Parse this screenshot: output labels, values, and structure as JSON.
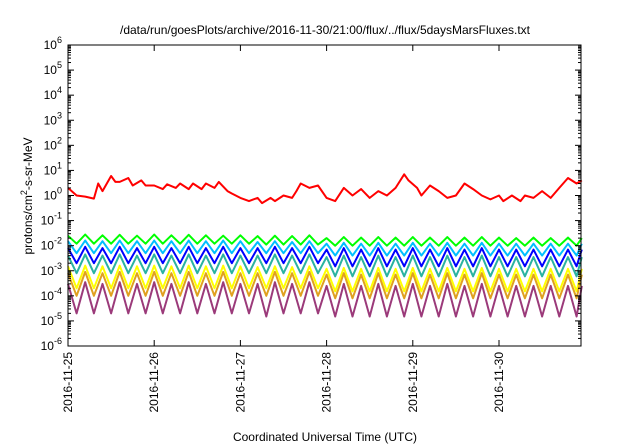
{
  "chart_data": {
    "type": "line",
    "title": "/data/run/goesPlots/archive/2016-11-30/21:00/flux/../flux/5daysMarsFluxes.txt",
    "xlabel": "Coordinated Universal Time (UTC)",
    "ylabel_base": "protons/cm",
    "ylabel_sup": "2",
    "ylabel_rest": "-s-sr-MeV",
    "yscale": "log",
    "xlim": [
      "2016-11-25 00:00",
      "2016-11-30 23:00"
    ],
    "ylim": [
      1e-06,
      1000000.0
    ],
    "xticks": [
      {
        "label": "2016-11-25",
        "day": 0
      },
      {
        "label": "2016-11-26",
        "day": 1
      },
      {
        "label": "2016-11-27",
        "day": 2
      },
      {
        "label": "2016-11-28",
        "day": 3
      },
      {
        "label": "2016-11-29",
        "day": 4
      },
      {
        "label": "2016-11-30",
        "day": 5
      }
    ],
    "yticks": [
      {
        "base": "10",
        "exp": "-6",
        "value": -6
      },
      {
        "base": "10",
        "exp": "-5",
        "value": -5
      },
      {
        "base": "10",
        "exp": "-4",
        "value": -4
      },
      {
        "base": "10",
        "exp": "-3",
        "value": -3
      },
      {
        "base": "10",
        "exp": "-2",
        "value": -2
      },
      {
        "base": "10",
        "exp": "-1",
        "value": -1
      },
      {
        "base": "10",
        "exp": "0",
        "value": 0
      },
      {
        "base": "10",
        "exp": "1",
        "value": 1
      },
      {
        "base": "10",
        "exp": "2",
        "value": 2
      },
      {
        "base": "10",
        "exp": "3",
        "value": 3
      },
      {
        "base": "10",
        "exp": "4",
        "value": 4
      },
      {
        "base": "10",
        "exp": "5",
        "value": 5
      },
      {
        "base": "10",
        "exp": "6",
        "value": 6
      }
    ],
    "grid": false,
    "legend": "none",
    "series": [
      {
        "color": "#ff0000",
        "x": [
          0.0,
          0.1,
          0.2,
          0.3,
          0.35,
          0.4,
          0.5,
          0.55,
          0.6,
          0.7,
          0.75,
          0.85,
          0.9,
          1.0,
          1.1,
          1.15,
          1.25,
          1.3,
          1.4,
          1.45,
          1.55,
          1.6,
          1.7,
          1.75,
          1.85,
          1.9,
          2.0,
          2.1,
          2.2,
          2.25,
          2.35,
          2.4,
          2.5,
          2.6,
          2.65,
          2.7,
          2.8,
          2.9,
          3.0,
          3.1,
          3.2,
          3.3,
          3.4,
          3.5,
          3.6,
          3.7,
          3.8,
          3.9,
          3.95,
          4.05,
          4.1,
          4.2,
          4.3,
          4.4,
          4.5,
          4.6,
          4.7,
          4.8,
          4.9,
          5.0,
          5.05,
          5.15,
          5.25,
          5.3,
          5.4,
          5.5,
          5.6,
          5.7,
          5.8,
          5.9,
          5.96
        ],
        "y": [
          2.0,
          1.0,
          0.9,
          0.75,
          3.0,
          1.5,
          6.0,
          3.5,
          3.5,
          5.0,
          2.5,
          4.0,
          2.5,
          2.5,
          1.8,
          2.8,
          2.0,
          3.0,
          1.8,
          3.0,
          1.8,
          3.0,
          2.0,
          3.5,
          1.5,
          1.2,
          0.8,
          0.6,
          0.8,
          0.5,
          0.8,
          0.6,
          1.0,
          0.8,
          1.5,
          3.0,
          2.0,
          2.5,
          0.8,
          0.6,
          2.0,
          1.0,
          1.8,
          0.8,
          1.5,
          1.0,
          2.0,
          7.0,
          4.0,
          2.0,
          1.0,
          2.5,
          1.5,
          0.8,
          1.0,
          3.0,
          1.8,
          1.0,
          0.7,
          1.0,
          0.6,
          1.0,
          0.6,
          1.0,
          0.8,
          1.5,
          0.8,
          2.0,
          5.0,
          3.0,
          4.0
        ]
      },
      {
        "color": "#00ff00",
        "x": [
          0.0,
          0.1,
          0.2,
          0.3,
          0.4,
          0.5,
          0.6,
          0.7,
          0.8,
          0.9,
          1.0,
          1.1,
          1.2,
          1.3,
          1.4,
          1.5,
          1.6,
          1.7,
          1.8,
          1.9,
          2.0,
          2.1,
          2.2,
          2.3,
          2.4,
          2.5,
          2.6,
          2.7,
          2.8,
          2.9,
          3.0,
          3.1,
          3.2,
          3.3,
          3.4,
          3.5,
          3.6,
          3.7,
          3.8,
          3.9,
          4.0,
          4.1,
          4.2,
          4.3,
          4.4,
          4.5,
          4.6,
          4.7,
          4.8,
          4.9,
          5.0,
          5.1,
          5.2,
          5.3,
          5.4,
          5.5,
          5.6,
          5.7,
          5.8,
          5.9,
          5.96
        ],
        "y": [
          0.025,
          0.012,
          0.028,
          0.012,
          0.026,
          0.012,
          0.027,
          0.012,
          0.025,
          0.012,
          0.028,
          0.012,
          0.026,
          0.012,
          0.027,
          0.012,
          0.026,
          0.012,
          0.025,
          0.012,
          0.026,
          0.012,
          0.024,
          0.011,
          0.025,
          0.011,
          0.024,
          0.011,
          0.026,
          0.011,
          0.02,
          0.01,
          0.022,
          0.01,
          0.021,
          0.01,
          0.022,
          0.01,
          0.021,
          0.01,
          0.022,
          0.01,
          0.021,
          0.01,
          0.022,
          0.01,
          0.021,
          0.01,
          0.022,
          0.01,
          0.021,
          0.01,
          0.02,
          0.01,
          0.021,
          0.01,
          0.02,
          0.01,
          0.021,
          0.01,
          0.02
        ]
      },
      {
        "color": "#00bfff",
        "x": [
          0.0,
          0.1,
          0.2,
          0.3,
          0.4,
          0.5,
          0.6,
          0.7,
          0.8,
          0.9,
          1.0,
          1.1,
          1.2,
          1.3,
          1.4,
          1.5,
          1.6,
          1.7,
          1.8,
          1.9,
          2.0,
          2.1,
          2.2,
          2.3,
          2.4,
          2.5,
          2.6,
          2.7,
          2.8,
          2.9,
          3.0,
          3.1,
          3.2,
          3.3,
          3.4,
          3.5,
          3.6,
          3.7,
          3.8,
          3.9,
          4.0,
          4.1,
          4.2,
          4.3,
          4.4,
          4.5,
          4.6,
          4.7,
          4.8,
          4.9,
          5.0,
          5.1,
          5.2,
          5.3,
          5.4,
          5.5,
          5.6,
          5.7,
          5.8,
          5.9,
          5.96
        ],
        "y": [
          0.015,
          0.005,
          0.016,
          0.005,
          0.015,
          0.005,
          0.016,
          0.005,
          0.015,
          0.005,
          0.016,
          0.005,
          0.015,
          0.005,
          0.016,
          0.005,
          0.015,
          0.005,
          0.016,
          0.005,
          0.015,
          0.005,
          0.014,
          0.005,
          0.015,
          0.005,
          0.014,
          0.005,
          0.015,
          0.005,
          0.012,
          0.004,
          0.013,
          0.004,
          0.012,
          0.004,
          0.013,
          0.004,
          0.012,
          0.004,
          0.013,
          0.004,
          0.012,
          0.004,
          0.013,
          0.004,
          0.012,
          0.004,
          0.013,
          0.004,
          0.012,
          0.004,
          0.012,
          0.004,
          0.012,
          0.004,
          0.012,
          0.004,
          0.012,
          0.004,
          0.012
        ]
      },
      {
        "color": "#0000ff",
        "x": [
          0.0,
          0.1,
          0.2,
          0.3,
          0.4,
          0.5,
          0.6,
          0.7,
          0.8,
          0.9,
          1.0,
          1.1,
          1.2,
          1.3,
          1.4,
          1.5,
          1.6,
          1.7,
          1.8,
          1.9,
          2.0,
          2.1,
          2.2,
          2.3,
          2.4,
          2.5,
          2.6,
          2.7,
          2.8,
          2.9,
          3.0,
          3.1,
          3.2,
          3.3,
          3.4,
          3.5,
          3.6,
          3.7,
          3.8,
          3.9,
          4.0,
          4.1,
          4.2,
          4.3,
          4.4,
          4.5,
          4.6,
          4.7,
          4.8,
          4.9,
          5.0,
          5.1,
          5.2,
          5.3,
          5.4,
          5.5,
          5.6,
          5.7,
          5.8,
          5.9,
          5.96
        ],
        "y": [
          0.008,
          0.002,
          0.009,
          0.002,
          0.008,
          0.002,
          0.009,
          0.002,
          0.008,
          0.002,
          0.009,
          0.002,
          0.008,
          0.002,
          0.009,
          0.002,
          0.008,
          0.002,
          0.009,
          0.002,
          0.008,
          0.002,
          0.008,
          0.002,
          0.009,
          0.002,
          0.008,
          0.002,
          0.009,
          0.002,
          0.007,
          0.0015,
          0.008,
          0.0015,
          0.007,
          0.0015,
          0.008,
          0.0015,
          0.007,
          0.0015,
          0.008,
          0.0015,
          0.007,
          0.0015,
          0.008,
          0.0015,
          0.007,
          0.0015,
          0.008,
          0.0015,
          0.007,
          0.0015,
          0.007,
          0.0015,
          0.007,
          0.0015,
          0.007,
          0.0015,
          0.007,
          0.0015,
          0.007
        ]
      },
      {
        "color": "#2ab3a0",
        "x": [
          0.0,
          0.1,
          0.2,
          0.3,
          0.4,
          0.5,
          0.6,
          0.7,
          0.8,
          0.9,
          1.0,
          1.1,
          1.2,
          1.3,
          1.4,
          1.5,
          1.6,
          1.7,
          1.8,
          1.9,
          2.0,
          2.1,
          2.2,
          2.3,
          2.4,
          2.5,
          2.6,
          2.7,
          2.8,
          2.9,
          3.0,
          3.1,
          3.2,
          3.3,
          3.4,
          3.5,
          3.6,
          3.7,
          3.8,
          3.9,
          4.0,
          4.1,
          4.2,
          4.3,
          4.4,
          4.5,
          4.6,
          4.7,
          4.8,
          4.9,
          5.0,
          5.1,
          5.2,
          5.3,
          5.4,
          5.5,
          5.6,
          5.7,
          5.8,
          5.9,
          5.96
        ],
        "y": [
          0.004,
          0.0008,
          0.0045,
          0.0008,
          0.004,
          0.0008,
          0.0045,
          0.0008,
          0.004,
          0.0008,
          0.0045,
          0.0008,
          0.004,
          0.0008,
          0.0045,
          0.0008,
          0.004,
          0.0008,
          0.0045,
          0.0008,
          0.004,
          0.0008,
          0.004,
          0.0008,
          0.0045,
          0.0008,
          0.004,
          0.0008,
          0.0045,
          0.0008,
          0.0035,
          0.0006,
          0.004,
          0.0006,
          0.0035,
          0.0006,
          0.004,
          0.0006,
          0.0035,
          0.0006,
          0.004,
          0.0006,
          0.0035,
          0.0006,
          0.004,
          0.0006,
          0.0035,
          0.0006,
          0.004,
          0.0006,
          0.0035,
          0.0006,
          0.0035,
          0.0006,
          0.0035,
          0.0006,
          0.0035,
          0.0006,
          0.0035,
          0.0006,
          0.0035
        ]
      },
      {
        "color": "#ffff00",
        "x": [
          0.0,
          0.1,
          0.2,
          0.3,
          0.4,
          0.5,
          0.6,
          0.7,
          0.8,
          0.9,
          1.0,
          1.1,
          1.2,
          1.3,
          1.4,
          1.5,
          1.6,
          1.7,
          1.8,
          1.9,
          2.0,
          2.1,
          2.2,
          2.3,
          2.4,
          2.5,
          2.6,
          2.7,
          2.8,
          2.9,
          3.0,
          3.1,
          3.2,
          3.3,
          3.4,
          3.5,
          3.6,
          3.7,
          3.8,
          3.9,
          4.0,
          4.1,
          4.2,
          4.3,
          4.4,
          4.5,
          4.6,
          4.7,
          4.8,
          4.9,
          5.0,
          5.1,
          5.2,
          5.3,
          5.4,
          5.5,
          5.6,
          5.7,
          5.8,
          5.9,
          5.96
        ],
        "y": [
          0.0015,
          0.0002,
          0.0016,
          0.0002,
          0.0015,
          0.0002,
          0.0016,
          0.0002,
          0.0015,
          0.0002,
          0.0016,
          0.0002,
          0.0015,
          0.0002,
          0.0016,
          0.0002,
          0.0015,
          0.0002,
          0.0016,
          0.0002,
          0.0015,
          0.0002,
          0.0014,
          0.0002,
          0.0015,
          0.0002,
          0.0014,
          0.0002,
          0.0015,
          0.0002,
          0.0012,
          0.00015,
          0.0013,
          0.00015,
          0.0012,
          0.00015,
          0.0013,
          0.00015,
          0.0012,
          0.00015,
          0.0013,
          0.00015,
          0.0012,
          0.00015,
          0.0013,
          0.00015,
          0.0012,
          0.00015,
          0.0013,
          0.00015,
          0.0012,
          0.00015,
          0.0012,
          0.00015,
          0.0012,
          0.00015,
          0.0012,
          0.00015,
          0.0012,
          0.00015,
          0.0012
        ]
      },
      {
        "color": "#e0a020",
        "x": [
          0.0,
          0.1,
          0.2,
          0.3,
          0.4,
          0.5,
          0.6,
          0.7,
          0.8,
          0.9,
          1.0,
          1.1,
          1.2,
          1.3,
          1.4,
          1.5,
          1.6,
          1.7,
          1.8,
          1.9,
          2.0,
          2.1,
          2.2,
          2.3,
          2.4,
          2.5,
          2.6,
          2.7,
          2.8,
          2.9,
          3.0,
          3.1,
          3.2,
          3.3,
          3.4,
          3.5,
          3.6,
          3.7,
          3.8,
          3.9,
          4.0,
          4.1,
          4.2,
          4.3,
          4.4,
          4.5,
          4.6,
          4.7,
          4.8,
          4.9,
          5.0,
          5.1,
          5.2,
          5.3,
          5.4,
          5.5,
          5.6,
          5.7,
          5.8,
          5.9,
          5.96
        ],
        "y": [
          0.0008,
          0.0001,
          0.0009,
          0.0001,
          0.0008,
          0.0001,
          0.0009,
          0.0001,
          0.0008,
          0.0001,
          0.0009,
          0.0001,
          0.0008,
          0.0001,
          0.0009,
          0.0001,
          0.0008,
          0.0001,
          0.0009,
          0.0001,
          0.0008,
          0.0001,
          0.0008,
          0.0001,
          0.0009,
          0.0001,
          0.0008,
          0.0001,
          0.0009,
          0.0001,
          0.0007,
          8e-05,
          0.0008,
          8e-05,
          0.0007,
          8e-05,
          0.0008,
          8e-05,
          0.0007,
          8e-05,
          0.0008,
          8e-05,
          0.0007,
          8e-05,
          0.0008,
          8e-05,
          0.0007,
          8e-05,
          0.0008,
          8e-05,
          0.0007,
          8e-05,
          0.0007,
          8e-05,
          0.0007,
          8e-05,
          0.0007,
          8e-05,
          0.0007,
          8e-05,
          0.0007
        ]
      },
      {
        "color": "#9b3a7a",
        "x": [
          0.0,
          0.1,
          0.2,
          0.3,
          0.4,
          0.5,
          0.6,
          0.7,
          0.8,
          0.9,
          1.0,
          1.1,
          1.2,
          1.3,
          1.4,
          1.5,
          1.6,
          1.7,
          1.8,
          1.9,
          2.0,
          2.1,
          2.2,
          2.3,
          2.4,
          2.5,
          2.6,
          2.7,
          2.8,
          2.9,
          3.0,
          3.1,
          3.2,
          3.3,
          3.4,
          3.5,
          3.6,
          3.7,
          3.8,
          3.9,
          4.0,
          4.1,
          4.2,
          4.3,
          4.4,
          4.5,
          4.6,
          4.7,
          4.8,
          4.9,
          5.0,
          5.1,
          5.2,
          5.3,
          5.4,
          5.5,
          5.6,
          5.7,
          5.8,
          5.9,
          5.96
        ],
        "y": [
          0.0003,
          2e-05,
          0.00035,
          2e-05,
          0.0003,
          2e-05,
          0.00035,
          2e-05,
          0.0003,
          2e-05,
          0.00035,
          2e-05,
          0.0003,
          2e-05,
          0.00035,
          2e-05,
          0.0003,
          2e-05,
          0.00035,
          2e-05,
          0.0003,
          2e-05,
          0.0003,
          1.5e-05,
          0.00035,
          2e-05,
          0.0003,
          2e-05,
          0.00035,
          2e-05,
          0.00025,
          1.5e-05,
          0.0003,
          1.5e-05,
          0.00025,
          1.5e-05,
          0.0003,
          1.5e-05,
          0.00025,
          1.5e-05,
          0.0003,
          1.5e-05,
          0.00025,
          1.5e-05,
          0.0003,
          1.5e-05,
          0.00025,
          1.5e-05,
          0.0003,
          1.5e-05,
          0.00025,
          1.5e-05,
          0.00025,
          1.5e-05,
          0.00025,
          1.5e-05,
          0.00025,
          1.5e-05,
          0.00025,
          1.5e-05,
          0.00025
        ]
      }
    ]
  }
}
